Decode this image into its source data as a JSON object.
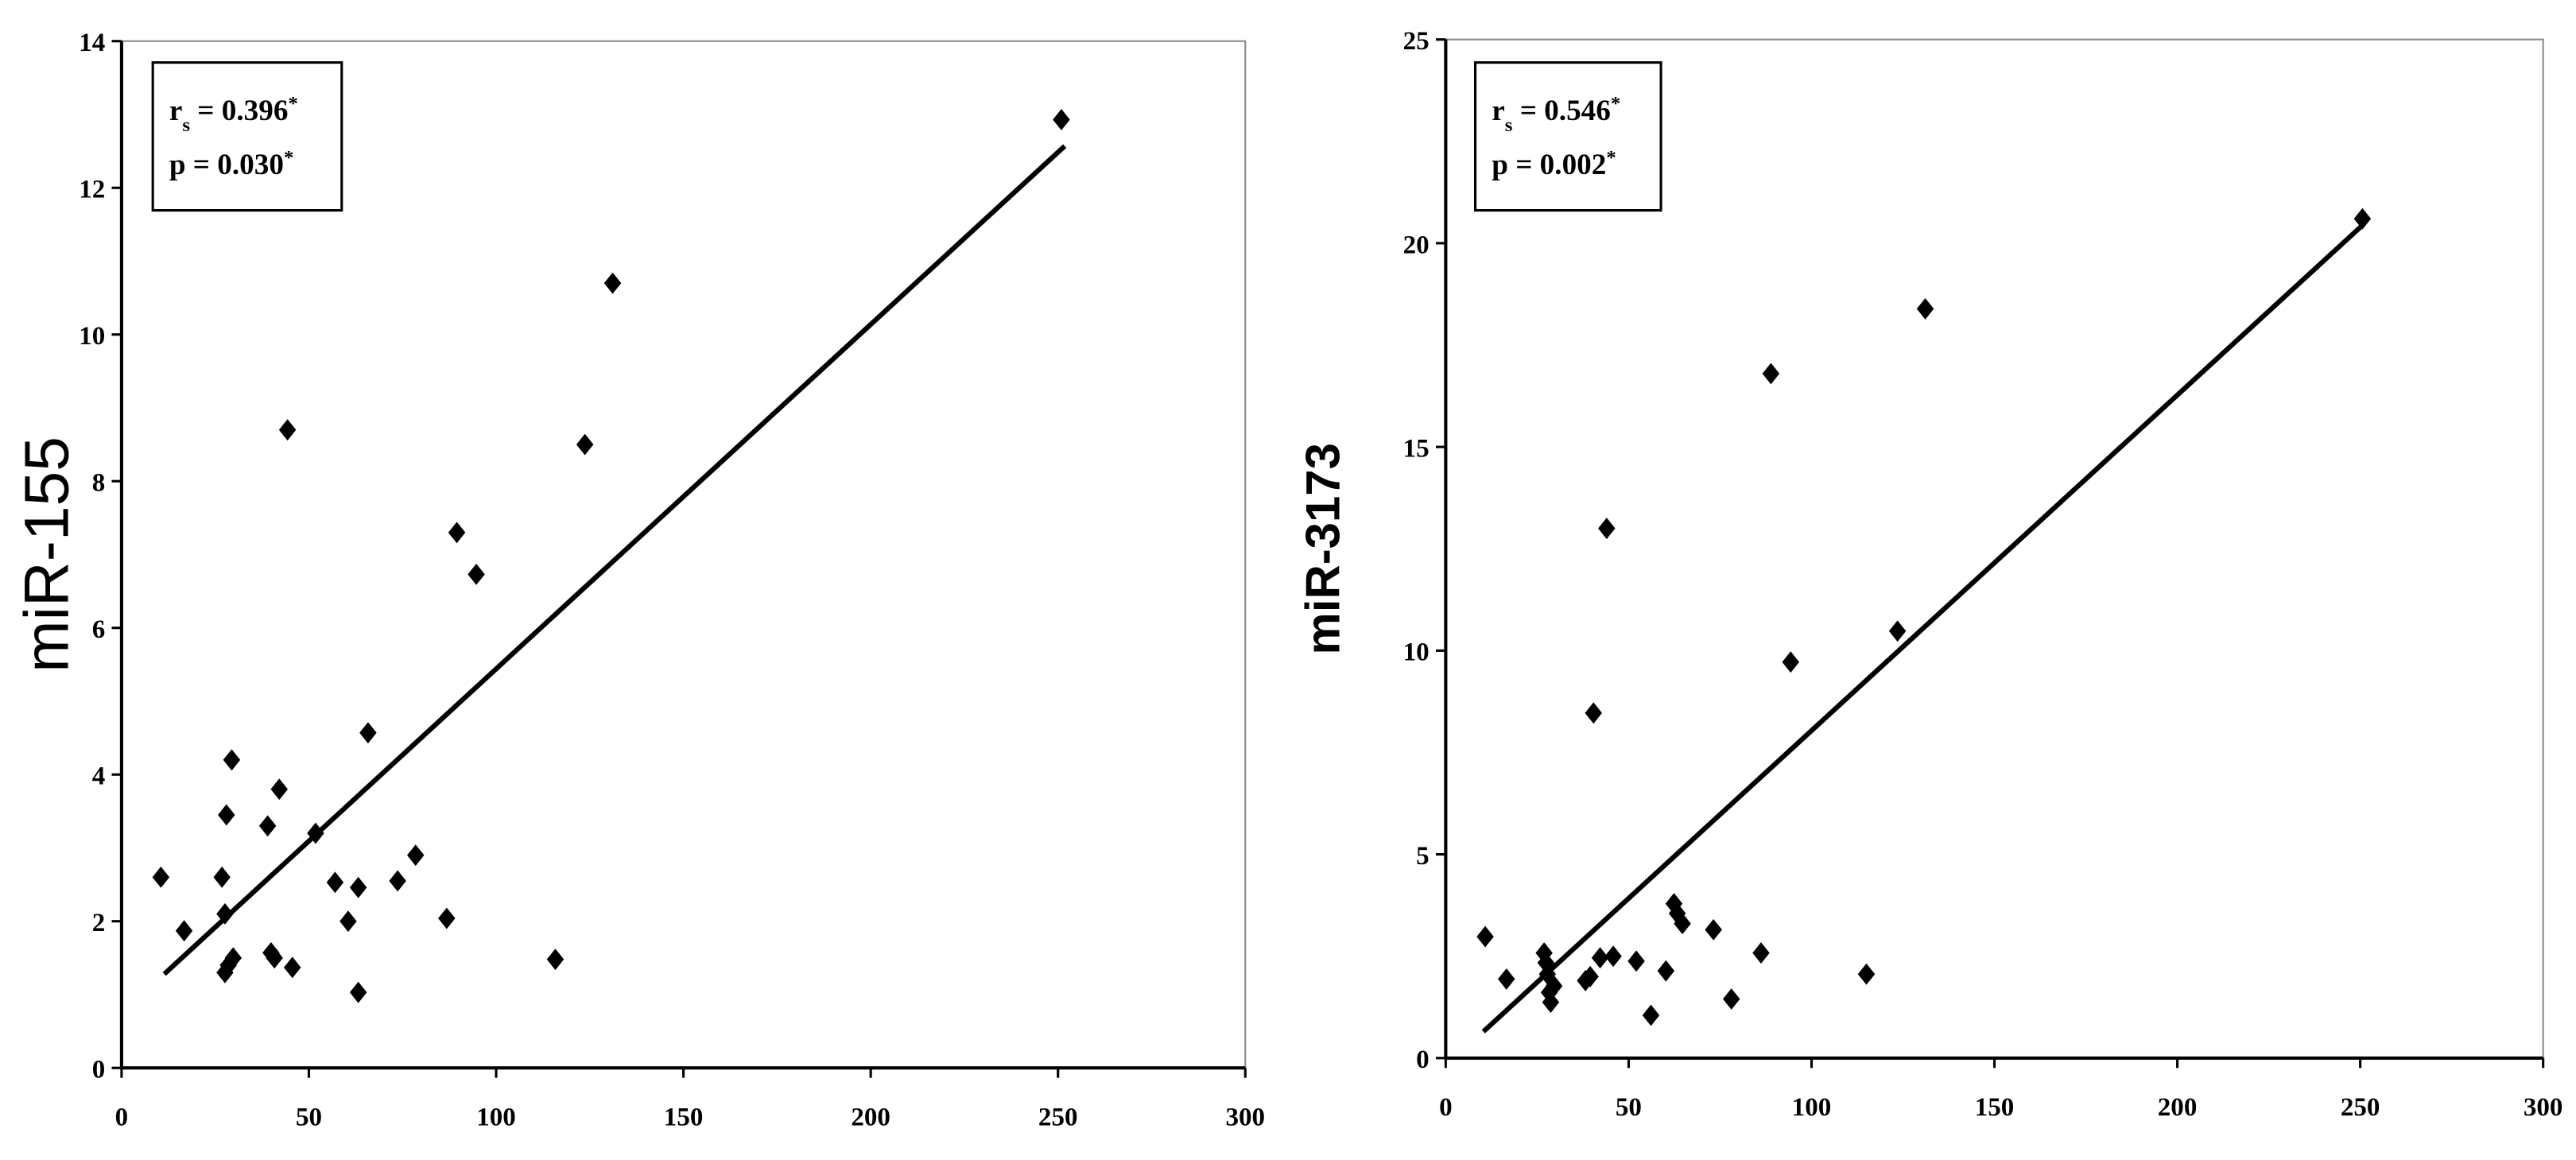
{
  "chart_data": [
    {
      "type": "scatter",
      "ylabel": "miR-155",
      "annotations": [
        [
          {
            "text": "r"
          },
          {
            "text": "s",
            "sub": true
          },
          {
            "text": " = 0.396"
          },
          {
            "text": "*",
            "sup": true
          }
        ],
        [
          {
            "text": "p = 0.030"
          },
          {
            "text": "*",
            "sup": true
          }
        ]
      ],
      "x": [
        10.5,
        16.7,
        26.8,
        27.6,
        28,
        29.4,
        27.6,
        28.5,
        29.8,
        39,
        39.9,
        40.8,
        42.1,
        44.3,
        45.6,
        51.8,
        57,
        60.5,
        63.2,
        63.2,
        65.8,
        73.7,
        78.5,
        86.8,
        89.5,
        94.7,
        115.8,
        123.7,
        131.1,
        250.9
      ],
      "values": [
        2.6,
        1.87,
        2.6,
        2.1,
        3.45,
        4.2,
        1.3,
        1.4,
        1.5,
        3.3,
        1.57,
        1.5,
        3.8,
        8.7,
        1.37,
        3.2,
        2.53,
        2.0,
        2.46,
        1.03,
        4.57,
        2.55,
        2.9,
        2.04,
        7.3,
        6.73,
        1.48,
        8.5,
        10.7,
        12.93
      ],
      "color": "#000000",
      "trendline": {
        "x": [
          11.4,
          251.8
        ],
        "y": [
          1.28,
          12.57
        ]
      },
      "xlim": [
        0,
        300
      ],
      "xticks": [
        0,
        50,
        100,
        150,
        200,
        250,
        300
      ],
      "ylim": [
        0,
        14
      ],
      "yticks": [
        0,
        2,
        4,
        6,
        8,
        10,
        12,
        14
      ]
    },
    {
      "type": "scatter",
      "ylabel": "miR-3173",
      "annotations": [
        [
          {
            "text": "r"
          },
          {
            "text": "s",
            "sub": true
          },
          {
            "text": " = 0.546"
          },
          {
            "text": "*",
            "sup": true
          }
        ],
        [
          {
            "text": "p = 0.002"
          },
          {
            "text": "*",
            "sup": true
          }
        ]
      ],
      "x": [
        10.8,
        16.6,
        26.9,
        27.4,
        27.8,
        28.3,
        28.7,
        29.6,
        38.2,
        39.5,
        40.4,
        42.2,
        44,
        45.8,
        52.1,
        56.1,
        60.2,
        62.4,
        63.3,
        64.7,
        73.2,
        78.1,
        86.2,
        88.9,
        94.3,
        115,
        123.5,
        131.1,
        250.6
      ],
      "values": [
        2.98,
        1.94,
        2.58,
        2.34,
        2.06,
        1.61,
        1.37,
        1.77,
        1.9,
        2.0,
        8.47,
        2.46,
        13.0,
        2.5,
        2.38,
        1.05,
        2.14,
        3.79,
        3.55,
        3.3,
        3.15,
        1.45,
        2.58,
        16.8,
        9.72,
        2.06,
        10.48,
        18.39,
        20.6
      ],
      "color": "#000000",
      "trendline": {
        "x": [
          10.3,
          250.6
        ],
        "y": [
          0.65,
          20.44
        ]
      },
      "xlim": [
        0,
        300
      ],
      "xticks": [
        0,
        50,
        100,
        150,
        200,
        250,
        300
      ],
      "ylim": [
        0,
        25
      ],
      "yticks": [
        0,
        5,
        10,
        15,
        20,
        25
      ]
    }
  ]
}
